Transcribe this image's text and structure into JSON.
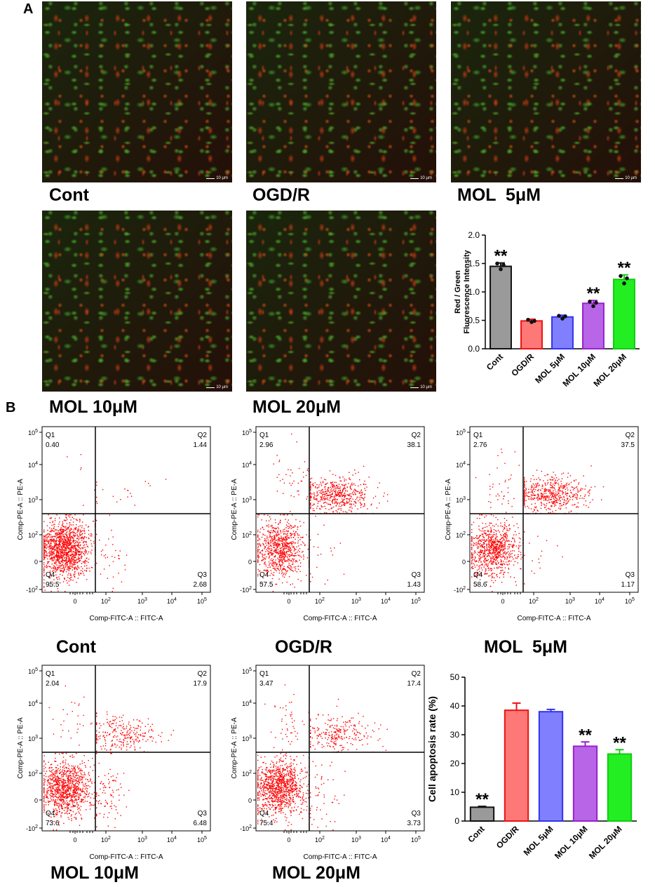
{
  "panel_a": {
    "letter": "A",
    "images": [
      {
        "label": "Cont",
        "scale": "10 μm"
      },
      {
        "label": "OGD/R",
        "scale": "10 μm"
      },
      {
        "label": "MOL  5μM",
        "scale": "10 μm"
      },
      {
        "label": "MOL 10μM",
        "scale": "10 μm"
      },
      {
        "label": "MOL 20μM",
        "scale": "10 μm"
      }
    ]
  },
  "panel_b": {
    "letter": "B",
    "flow_plots": [
      {
        "label": "Cont",
        "q1": "0.40",
        "q2": "1.44",
        "q3": "2.68",
        "q4": "95.5"
      },
      {
        "label": "OGD/R",
        "q1": "2.96",
        "q2": "38.1",
        "q3": "1.43",
        "q4": "57.5"
      },
      {
        "label": "MOL  5μM",
        "q1": "2.76",
        "q2": "37.5",
        "q3": "1.17",
        "q4": "58.6"
      },
      {
        "label": "MOL 10μM",
        "q1": "2.04",
        "q2": "17.9",
        "q3": "6.48",
        "q4": "73.6"
      },
      {
        "label": "MOL 20μM",
        "q1": "3.47",
        "q2": "17.4",
        "q3": "3.73",
        "q4": "75.4"
      }
    ],
    "flow_axis": {
      "xlabel": "Comp-FITC-A :: FITC-A",
      "ylabel": "Comp-PE-A :: PE-A",
      "quadrant_names": [
        "Q1",
        "Q2",
        "Q3",
        "Q4"
      ]
    }
  },
  "chart_data": [
    {
      "type": "bar",
      "title": "",
      "xlabel": "",
      "ylabel": "Red / Green Fluorescence Intensity",
      "ylabel_lines": [
        "Red / Green",
        "Fluorescence Intensity"
      ],
      "categories": [
        "Cont",
        "OGD/R",
        "MOL 5μM",
        "MOL 10μM",
        "MOL 20μM"
      ],
      "values": [
        1.45,
        0.49,
        0.56,
        0.8,
        1.22
      ],
      "errors": [
        0.06,
        0.03,
        0.03,
        0.05,
        0.08
      ],
      "points": [
        [
          1.5,
          1.4,
          1.47
        ],
        [
          0.51,
          0.47,
          0.49
        ],
        [
          0.58,
          0.53,
          0.57
        ],
        [
          0.83,
          0.75,
          0.81
        ],
        [
          1.28,
          1.15,
          1.24
        ]
      ],
      "significance": [
        "**",
        "",
        "",
        "**",
        "**"
      ],
      "ylim": [
        0,
        2.0
      ],
      "yticks": [
        "0.0",
        "0.5",
        "1.0",
        "1.5",
        "2.0"
      ],
      "fill_colors": [
        "#9a9a9a",
        "#ff7878",
        "#8080ff",
        "#b865e8",
        "#22ee22"
      ],
      "edge_colors": [
        "#111111",
        "#ee1111",
        "#3333ee",
        "#9922cc",
        "#11cc11"
      ]
    },
    {
      "type": "bar",
      "title": "",
      "xlabel": "",
      "ylabel": "Cell apoptosis rate (%)",
      "categories": [
        "Cont",
        "OGD/R",
        "MOL 5μM",
        "MOL 10μM",
        "MOL 20μM"
      ],
      "values": [
        4.8,
        38.5,
        38.0,
        26.0,
        23.3
      ],
      "errors": [
        0.3,
        2.5,
        0.8,
        1.5,
        1.5
      ],
      "significance": [
        "**",
        "",
        "",
        "**",
        "**"
      ],
      "ylim": [
        0,
        50
      ],
      "yticks": [
        "0",
        "10",
        "20",
        "30",
        "40",
        "50"
      ],
      "fill_colors": [
        "#9a9a9a",
        "#ff7878",
        "#8080ff",
        "#b865e8",
        "#22ee22"
      ],
      "edge_colors": [
        "#111111",
        "#ee1111",
        "#3333ee",
        "#9922cc",
        "#11cc11"
      ]
    }
  ]
}
